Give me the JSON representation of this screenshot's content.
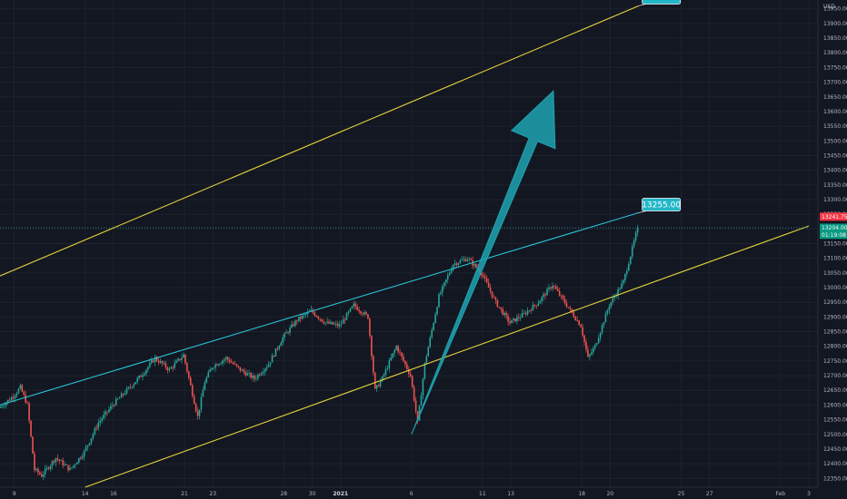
{
  "chart_data": {
    "type": "candlestick",
    "currency": "USD",
    "y_range": [
      12320,
      13980
    ],
    "y_ticks": [
      12350,
      12400,
      12450,
      12500,
      12550,
      12600,
      12650,
      12700,
      12750,
      12800,
      12850,
      12900,
      12950,
      13000,
      13050,
      13100,
      13150,
      13200,
      13250,
      13300,
      13350,
      13400,
      13450,
      13500,
      13550,
      13600,
      13650,
      13700,
      13750,
      13800,
      13850,
      13900,
      13950
    ],
    "x_range": [
      "2020-12-08",
      "2021-02-03"
    ],
    "x_ticks": [
      {
        "date": "2020-12-09",
        "label": "9"
      },
      {
        "date": "2020-12-14",
        "label": "14"
      },
      {
        "date": "2020-12-16",
        "label": "16"
      },
      {
        "date": "2020-12-21",
        "label": "21"
      },
      {
        "date": "2020-12-23",
        "label": "23"
      },
      {
        "date": "2020-12-28",
        "label": "28"
      },
      {
        "date": "2020-12-30",
        "label": "30"
      },
      {
        "date": "2021-01-01",
        "label": "2021",
        "bold": true
      },
      {
        "date": "2021-01-06",
        "label": "6"
      },
      {
        "date": "2021-01-11",
        "label": "11"
      },
      {
        "date": "2021-01-13",
        "label": "13"
      },
      {
        "date": "2021-01-18",
        "label": "18"
      },
      {
        "date": "2021-01-20",
        "label": "20"
      },
      {
        "date": "2021-01-25",
        "label": "25"
      },
      {
        "date": "2021-01-27",
        "label": "27"
      },
      {
        "date": "2021-02-01",
        "label": "Feb"
      },
      {
        "date": "2021-02-03",
        "label": "3"
      }
    ],
    "price_path": [
      [
        "2020-12-08",
        12590
      ],
      [
        "2020-12-09",
        12630
      ],
      [
        "2020-12-09T12:00",
        12660
      ],
      [
        "2020-12-10",
        12600
      ],
      [
        "2020-12-10T12:00",
        12380
      ],
      [
        "2020-12-11",
        12360
      ],
      [
        "2020-12-12",
        12420
      ],
      [
        "2020-12-13",
        12380
      ],
      [
        "2020-12-14",
        12440
      ],
      [
        "2020-12-15",
        12540
      ],
      [
        "2020-12-16",
        12600
      ],
      [
        "2020-12-17",
        12650
      ],
      [
        "2020-12-18",
        12700
      ],
      [
        "2020-12-19",
        12760
      ],
      [
        "2020-12-20",
        12720
      ],
      [
        "2020-12-21",
        12770
      ],
      [
        "2020-12-22",
        12560
      ],
      [
        "2020-12-22T12:00",
        12680
      ],
      [
        "2020-12-23",
        12730
      ],
      [
        "2020-12-24",
        12760
      ],
      [
        "2020-12-25",
        12720
      ],
      [
        "2020-12-26",
        12690
      ],
      [
        "2020-12-27",
        12740
      ],
      [
        "2020-12-28",
        12830
      ],
      [
        "2020-12-29",
        12890
      ],
      [
        "2020-12-30",
        12920
      ],
      [
        "2020-12-31",
        12880
      ],
      [
        "2021-01-01",
        12870
      ],
      [
        "2021-01-02",
        12940
      ],
      [
        "2021-01-03",
        12900
      ],
      [
        "2021-01-03T12:00",
        12650
      ],
      [
        "2021-01-04",
        12690
      ],
      [
        "2021-01-05",
        12800
      ],
      [
        "2021-01-06",
        12700
      ],
      [
        "2021-01-06T12:00",
        12540
      ],
      [
        "2021-01-07",
        12740
      ],
      [
        "2021-01-08",
        12970
      ],
      [
        "2021-01-09",
        13080
      ],
      [
        "2021-01-10",
        13100
      ],
      [
        "2021-01-11",
        13050
      ],
      [
        "2021-01-12",
        12950
      ],
      [
        "2021-01-13",
        12880
      ],
      [
        "2021-01-14",
        12910
      ],
      [
        "2021-01-15",
        12950
      ],
      [
        "2021-01-16",
        13010
      ],
      [
        "2021-01-17",
        12940
      ],
      [
        "2021-01-18",
        12870
      ],
      [
        "2021-01-18T12:00",
        12760
      ],
      [
        "2021-01-19",
        12800
      ],
      [
        "2021-01-20",
        12940
      ],
      [
        "2021-01-21",
        13020
      ],
      [
        "2021-01-21T12:00",
        13110
      ],
      [
        "2021-01-22",
        13204
      ]
    ],
    "lines": [
      {
        "name": "upper-yellow-channel",
        "color": "#e5d33a",
        "from": [
          "2020-12-08",
          13040
        ],
        "to": [
          "2021-01-22",
          13960
        ]
      },
      {
        "name": "lower-yellow-channel",
        "color": "#e5d33a",
        "from": [
          "2020-12-14",
          12320
        ],
        "to": [
          "2021-02-03",
          13210
        ]
      },
      {
        "name": "cyan-trendline",
        "color": "#28c3d4",
        "from": [
          "2020-12-08",
          12600
        ],
        "to": [
          "2021-01-22",
          13255
        ]
      },
      {
        "name": "current-price-dotted",
        "color": "#26a69a",
        "from": [
          "2020-12-08",
          13204
        ],
        "to": [
          "2021-02-03",
          13204
        ]
      }
    ],
    "projection_arrow": {
      "color": "#1fa3b0",
      "from": [
        "2021-01-06",
        12500
      ],
      "to": [
        "2021-01-16",
        13670
      ]
    },
    "price_tags": [
      {
        "name": "price-tag-red",
        "value": "13241.75",
        "y": 13241.75,
        "color": "#f23645"
      },
      {
        "name": "price-tag-green",
        "value": "13204.00",
        "y": 13204,
        "color": "#089981"
      },
      {
        "name": "countdown-tag",
        "value": "01:19:08",
        "y": 13180,
        "color": "#089981"
      }
    ],
    "annotations": [
      {
        "name": "annotation-13255",
        "text": "13255.00",
        "at": [
          "2021-01-22",
          13255
        ],
        "color": "#22b7c8"
      },
      {
        "name": "annotation-top",
        "text": "",
        "at": [
          "2021-01-22",
          13960
        ],
        "color": "#22b7c8"
      }
    ]
  }
}
